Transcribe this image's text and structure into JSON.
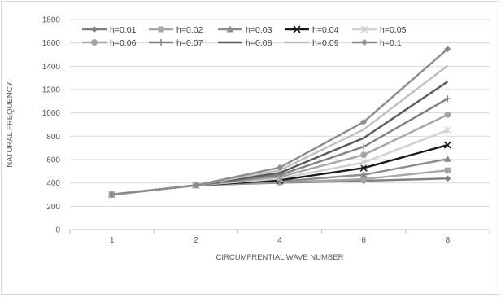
{
  "chart_data": {
    "type": "line",
    "title": "",
    "xlabel": "CIRCUMFRENTIAL WAVE NUMBER",
    "ylabel": "NATURAL FREQUENCY",
    "categories": [
      "1",
      "2",
      "4",
      "6",
      "8"
    ],
    "ylim": [
      0,
      1800
    ],
    "yticks": [
      "0",
      "200",
      "400",
      "600",
      "800",
      "1000",
      "1200",
      "1400",
      "1600",
      "1800"
    ],
    "grid": "horizontal",
    "legend_position": "top",
    "series": [
      {
        "name": "h=0.01",
        "values": [
          300,
          380,
          402,
          418,
          438
        ],
        "color": "#7f7f7f",
        "marker": "diamond"
      },
      {
        "name": "h=0.02",
        "values": [
          300,
          380,
          406,
          432,
          508
        ],
        "color": "#a6a6a6",
        "marker": "square"
      },
      {
        "name": "h=0.03",
        "values": [
          300,
          380,
          413,
          470,
          605
        ],
        "color": "#8c8c8c",
        "marker": "triangle"
      },
      {
        "name": "h=0.04",
        "values": [
          300,
          380,
          423,
          528,
          725
        ],
        "color": "#1a1a1a",
        "marker": "x"
      },
      {
        "name": "h=0.05",
        "values": [
          300,
          380,
          437,
          575,
          852
        ],
        "color": "#d0d0d0",
        "marker": "star"
      },
      {
        "name": "h=0.06",
        "values": [
          300,
          380,
          452,
          640,
          985
        ],
        "color": "#a6a6a6",
        "marker": "circle"
      },
      {
        "name": "h=0.07",
        "values": [
          300,
          380,
          468,
          710,
          1122
        ],
        "color": "#808080",
        "marker": "plus"
      },
      {
        "name": "h=0.08",
        "values": [
          300,
          380,
          486,
          785,
          1268
        ],
        "color": "#595959",
        "marker": "none"
      },
      {
        "name": "h=0.09",
        "values": [
          300,
          380,
          508,
          858,
          1405
        ],
        "color": "#bfbfbf",
        "marker": "none"
      },
      {
        "name": "h=0.1",
        "values": [
          300,
          380,
          532,
          922,
          1548
        ],
        "color": "#8c8c8c",
        "marker": "diamond"
      }
    ]
  }
}
